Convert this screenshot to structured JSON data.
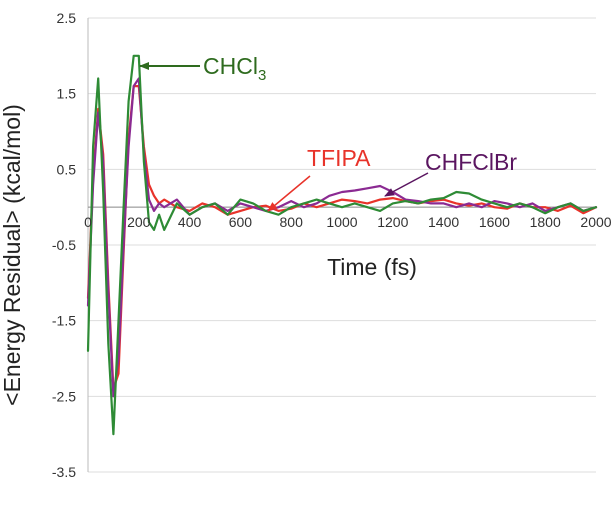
{
  "chart_data": {
    "type": "line",
    "xlabel": "Time (fs)",
    "ylabel": "<Energy Residual> (kcal/mol)",
    "xlim": [
      0,
      2000
    ],
    "ylim": [
      -3.5,
      2.5
    ],
    "x_ticks": [
      "0",
      "200",
      "400",
      "600",
      "800",
      "1000",
      "1200",
      "1400",
      "1600",
      "1800",
      "2000"
    ],
    "y_ticks": [
      "2.5",
      "1.5",
      "0.5",
      "-0.5",
      "-1.5",
      "-2.5",
      "-3.5"
    ],
    "grid": "horizontal",
    "colors": {
      "CHCl3": "#2e8b35",
      "TFIPA": "#e8332a",
      "CHFClBr": "#8b2a92",
      "arrow_CHCl3": "#2e6b1e",
      "arrow_TFIPA": "#e8332a",
      "arrow_CHFClBr": "#5a1560"
    },
    "annotations": [
      {
        "text": "CHCl",
        "sub": "3",
        "target": [
          200,
          1.75
        ],
        "color": "#2e6b1e"
      },
      {
        "text": "TFIPA",
        "target": [
          700,
          0.02
        ],
        "color": "#e8332a"
      },
      {
        "text": "CHFClBr",
        "target": [
          1100,
          0.28
        ],
        "color": "#5a1560"
      }
    ],
    "series": [
      {
        "key": "TFIPA",
        "x": [
          0,
          20,
          40,
          60,
          80,
          100,
          120,
          140,
          160,
          180,
          200,
          220,
          240,
          260,
          280,
          300,
          350,
          400,
          450,
          500,
          550,
          600,
          650,
          700,
          750,
          800,
          850,
          900,
          950,
          1000,
          1050,
          1100,
          1150,
          1200,
          1250,
          1300,
          1350,
          1400,
          1450,
          1500,
          1550,
          1600,
          1650,
          1700,
          1750,
          1800,
          1850,
          1900,
          1950,
          2000
        ],
        "y": [
          -1.2,
          0.4,
          1.3,
          0.7,
          -1.0,
          -2.4,
          -2.2,
          -0.6,
          0.9,
          1.6,
          1.6,
          0.8,
          0.3,
          0.15,
          0.05,
          0.1,
          0.0,
          -0.05,
          0.05,
          0.0,
          -0.1,
          -0.05,
          0.0,
          0.02,
          -0.05,
          -0.02,
          0.05,
          0.0,
          0.05,
          0.1,
          0.08,
          0.05,
          0.1,
          0.12,
          0.08,
          0.05,
          0.08,
          0.1,
          0.05,
          0.02,
          0.05,
          0.0,
          -0.02,
          0.05,
          0.0,
          0.0,
          -0.05,
          0.02,
          -0.08,
          0.0
        ]
      },
      {
        "key": "CHFClBr",
        "x": [
          0,
          20,
          40,
          60,
          80,
          100,
          120,
          140,
          160,
          180,
          200,
          220,
          240,
          260,
          280,
          300,
          350,
          400,
          450,
          500,
          550,
          600,
          650,
          700,
          750,
          800,
          850,
          900,
          950,
          1000,
          1050,
          1100,
          1150,
          1200,
          1250,
          1300,
          1350,
          1400,
          1450,
          1500,
          1550,
          1600,
          1650,
          1700,
          1750,
          1800,
          1850,
          1900,
          1950,
          2000
        ],
        "y": [
          -1.3,
          0.3,
          1.25,
          0.6,
          -1.1,
          -2.5,
          -2.0,
          -0.5,
          0.8,
          1.6,
          1.7,
          0.7,
          0.1,
          -0.05,
          0.05,
          0.0,
          0.1,
          -0.1,
          0.0,
          0.05,
          -0.05,
          0.05,
          0.0,
          -0.05,
          0.0,
          0.08,
          0.0,
          0.05,
          0.15,
          0.2,
          0.22,
          0.25,
          0.28,
          0.2,
          0.1,
          0.08,
          0.05,
          0.05,
          0.0,
          0.05,
          0.0,
          0.08,
          0.05,
          0.0,
          0.05,
          -0.05,
          0.0,
          0.05,
          -0.05,
          0.0
        ]
      },
      {
        "key": "CHCl3",
        "x": [
          0,
          20,
          40,
          60,
          80,
          100,
          120,
          140,
          160,
          180,
          200,
          220,
          240,
          260,
          280,
          300,
          350,
          400,
          450,
          500,
          550,
          600,
          650,
          700,
          750,
          800,
          850,
          900,
          950,
          1000,
          1050,
          1100,
          1150,
          1200,
          1250,
          1300,
          1350,
          1400,
          1450,
          1500,
          1550,
          1600,
          1650,
          1700,
          1750,
          1800,
          1850,
          1900,
          1950,
          2000
        ],
        "y": [
          -1.9,
          0.8,
          1.7,
          0.2,
          -1.8,
          -3.0,
          -1.5,
          0.0,
          1.4,
          2.0,
          2.0,
          0.6,
          -0.2,
          -0.3,
          -0.1,
          -0.3,
          0.05,
          -0.1,
          0.0,
          0.05,
          -0.1,
          0.1,
          0.05,
          -0.05,
          -0.1,
          0.0,
          0.05,
          0.1,
          0.05,
          0.0,
          0.05,
          0.0,
          -0.05,
          0.05,
          0.08,
          0.05,
          0.1,
          0.12,
          0.2,
          0.18,
          0.1,
          0.05,
          0.0,
          0.05,
          0.0,
          -0.08,
          0.0,
          0.05,
          -0.05,
          0.0
        ]
      }
    ]
  }
}
